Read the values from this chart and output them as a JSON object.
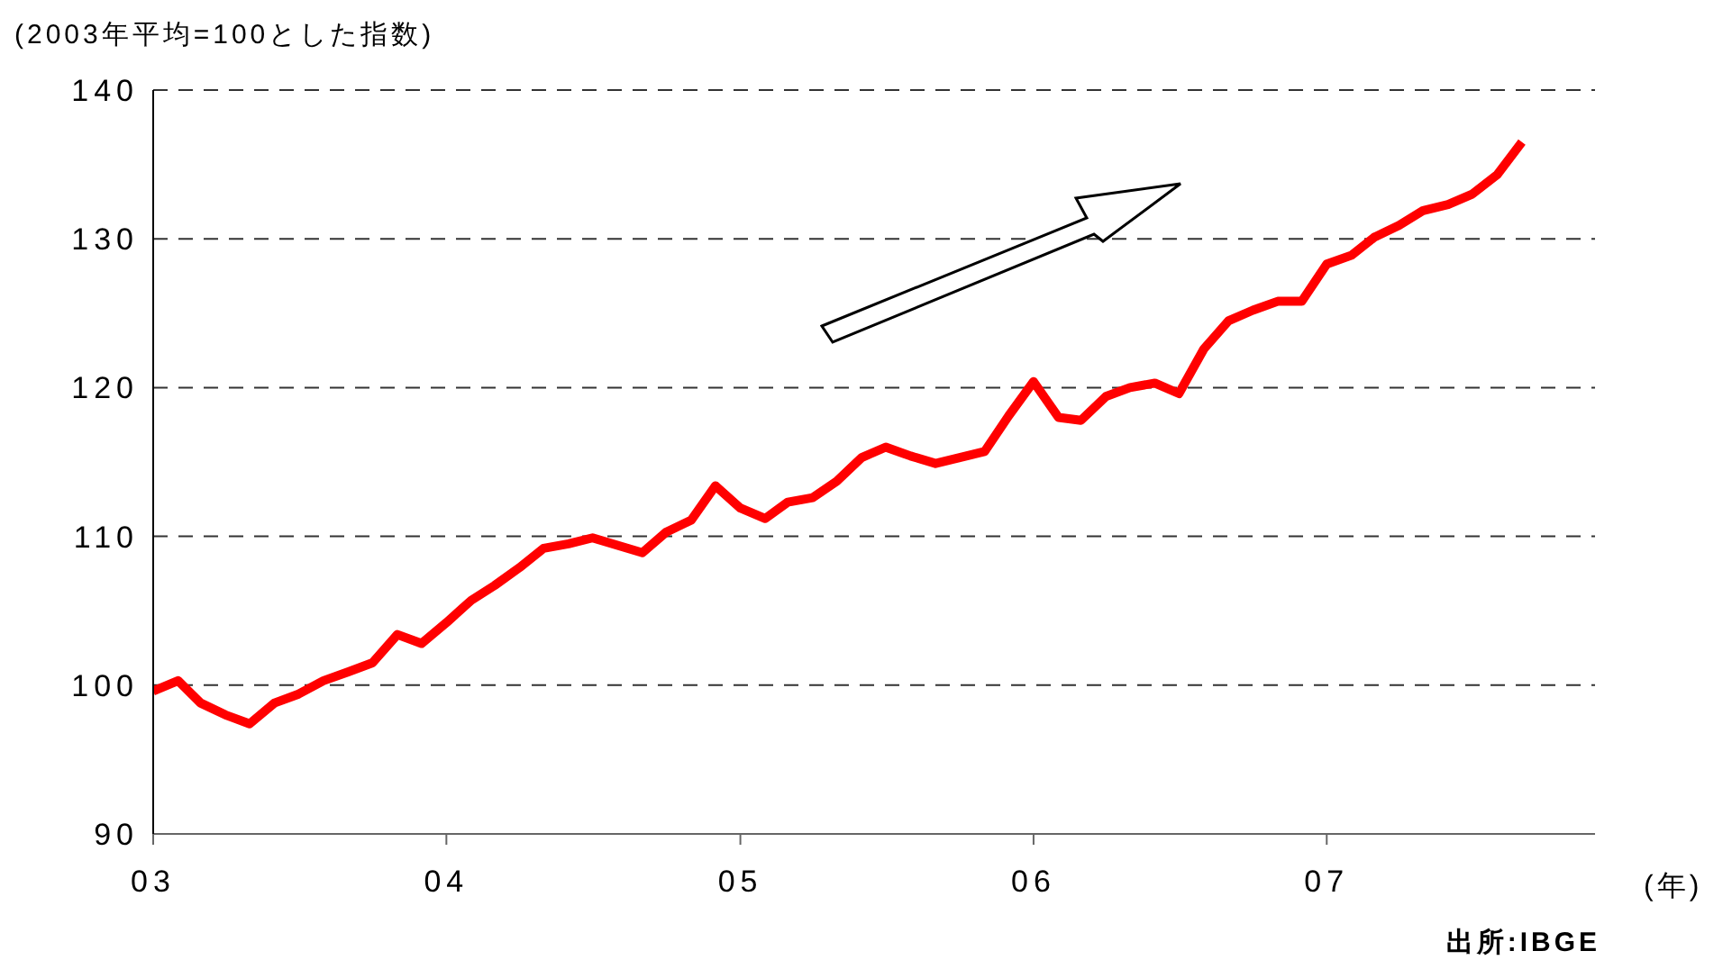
{
  "chart_data": {
    "type": "line",
    "ylabel": "(2003年平均=100とした指数)",
    "xlabel": "(年)",
    "annotations": [
      "出所:IBGE"
    ],
    "x": [
      "2003-01",
      "2003-02",
      "2003-03",
      "2003-04",
      "2003-05",
      "2003-06",
      "2003-07",
      "2003-08",
      "2003-09",
      "2003-10",
      "2003-11",
      "2003-12",
      "2004-01",
      "2004-02",
      "2004-03",
      "2004-04",
      "2004-05",
      "2004-06",
      "2004-07",
      "2004-08",
      "2004-09",
      "2004-10",
      "2004-11",
      "2004-12",
      "2005-01",
      "2005-02",
      "2005-03",
      "2005-04",
      "2005-05",
      "2005-06",
      "2005-07",
      "2005-08",
      "2005-09",
      "2005-10",
      "2005-11",
      "2005-12",
      "2006-01",
      "2006-02",
      "2006-03",
      "2006-04",
      "2006-05",
      "2006-06",
      "2006-07",
      "2006-08",
      "2006-09",
      "2006-10",
      "2006-11",
      "2006-12",
      "2007-01",
      "2007-02",
      "2007-03",
      "2007-04",
      "2007-05",
      "2007-06",
      "2007-07",
      "2007-08",
      "2007-09"
    ],
    "series": [
      {
        "color": "#ff0000",
        "values": [
          99.6,
          100.3,
          98.8,
          98.0,
          97.4,
          98.8,
          99.4,
          100.3,
          100.9,
          101.5,
          103.4,
          102.8,
          104.2,
          105.7,
          106.7,
          107.9,
          109.2,
          109.5,
          109.9,
          109.4,
          108.9,
          110.3,
          111.1,
          113.4,
          111.9,
          111.2,
          112.3,
          112.6,
          113.7,
          115.3,
          116.0,
          115.4,
          114.9,
          115.3,
          115.7,
          118.1,
          120.4,
          118.0,
          117.8,
          119.4,
          120.0,
          120.3,
          119.6,
          122.6,
          124.5,
          125.2,
          125.8,
          125.8,
          128.3,
          128.9,
          130.1,
          130.9,
          131.9,
          132.3,
          133.0,
          134.3,
          136.5
        ]
      }
    ],
    "xlim": [
      "2003-01",
      "2007-12"
    ],
    "xticks": [
      {
        "value": "2003-01",
        "label": "03"
      },
      {
        "value": "2004-01",
        "label": "04"
      },
      {
        "value": "2005-01",
        "label": "05"
      },
      {
        "value": "2006-01",
        "label": "06"
      },
      {
        "value": "2007-01",
        "label": "07"
      }
    ],
    "ylim": [
      90,
      140
    ],
    "yticks": [
      90,
      100,
      110,
      120,
      130,
      140
    ],
    "grid": "y",
    "legend": false,
    "marker": "none",
    "line_style": "solid"
  }
}
